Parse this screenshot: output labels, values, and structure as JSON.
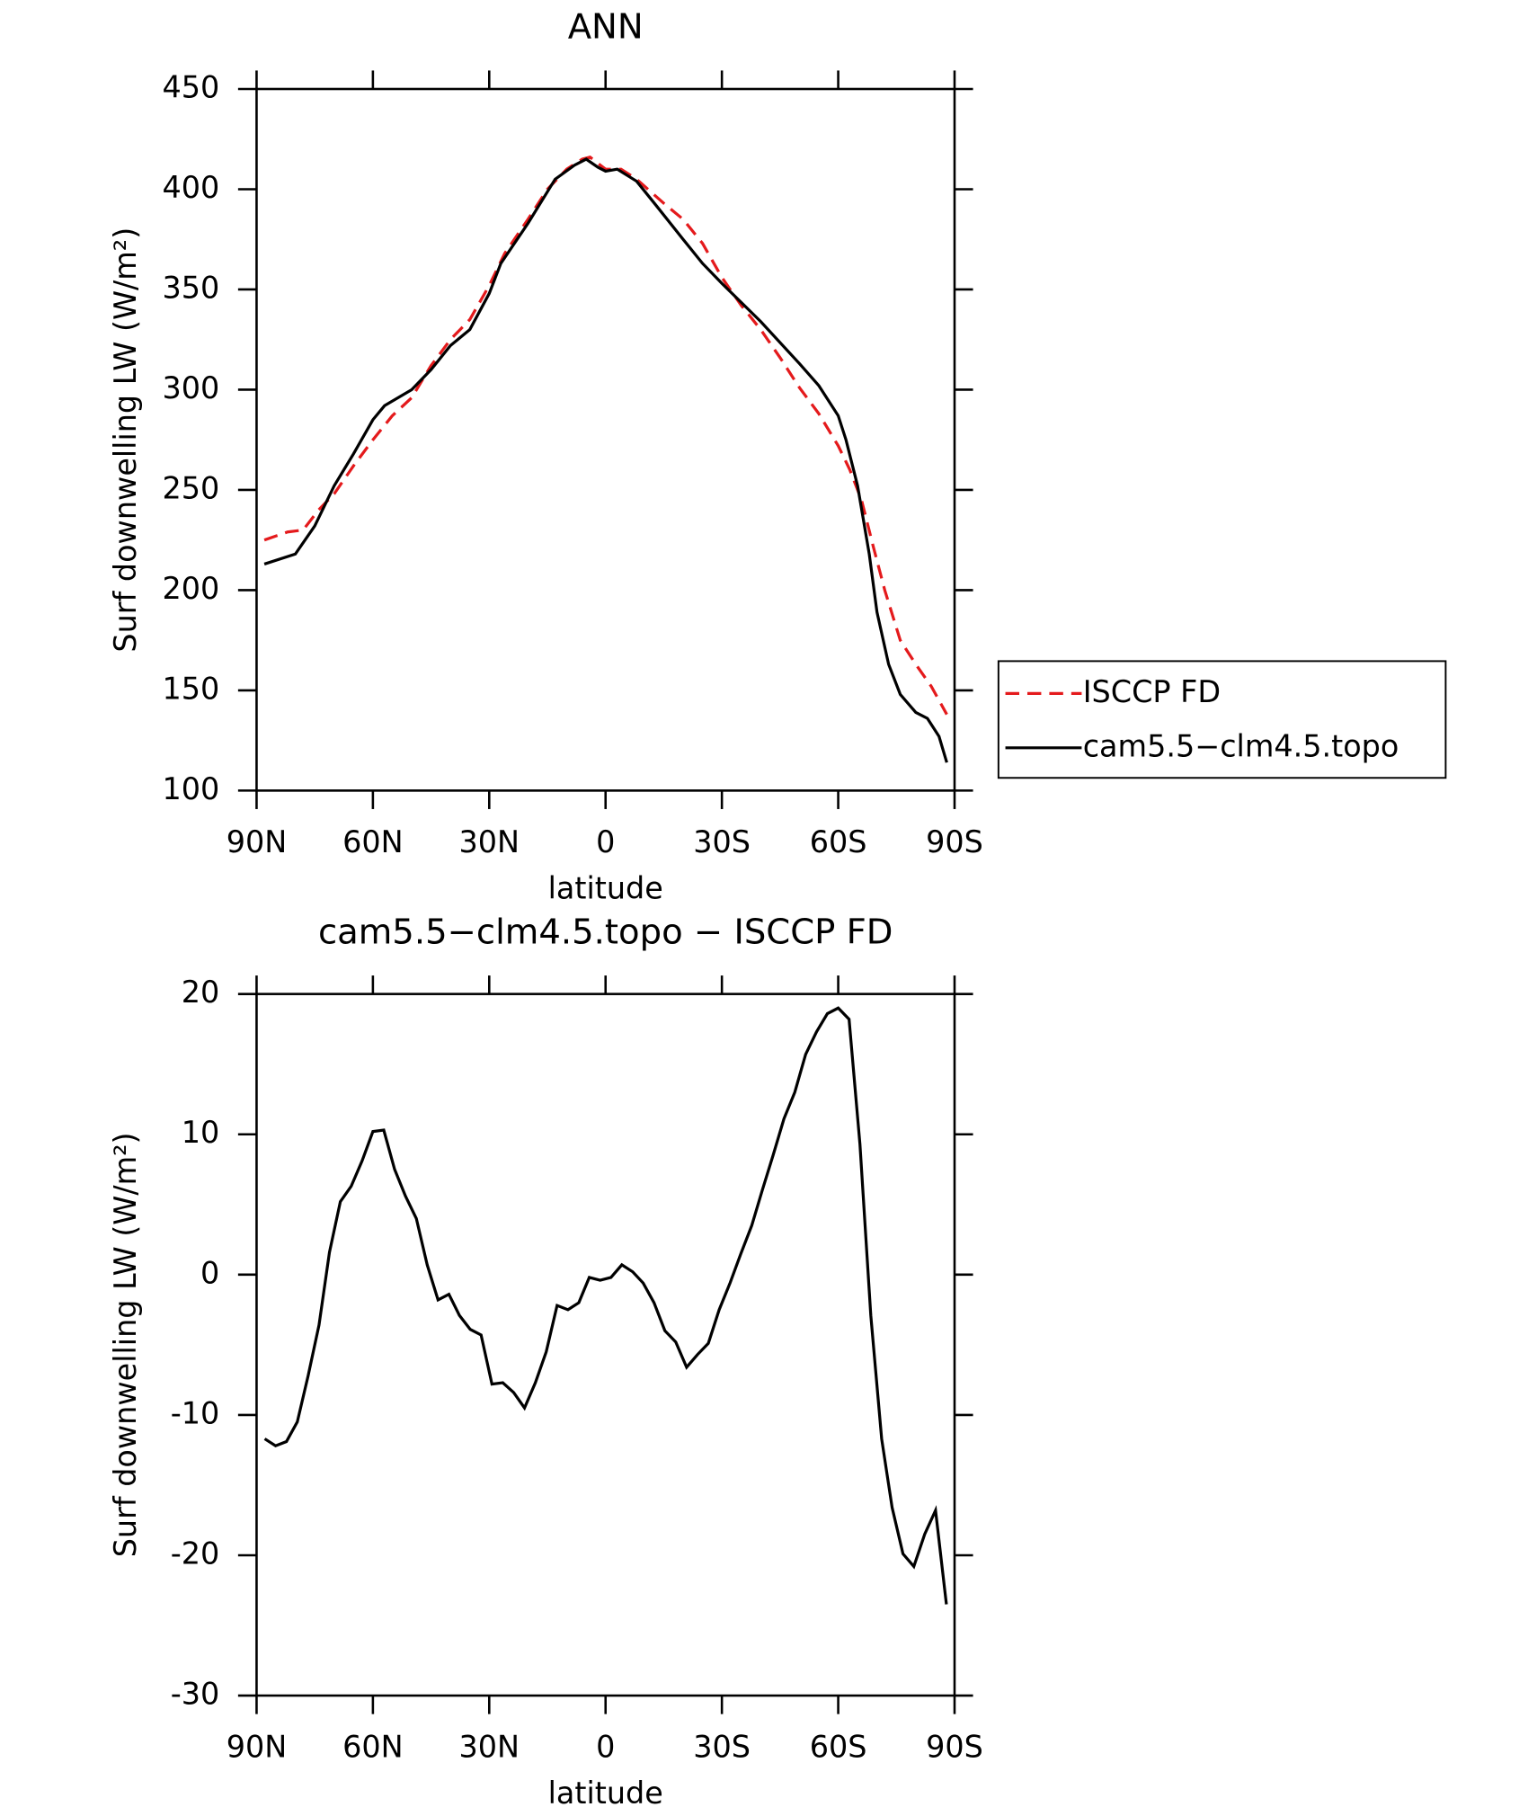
{
  "chart_data": [
    {
      "type": "line",
      "title": "ANN",
      "xlabel": "latitude",
      "ylabel": "Surf downwelling LW (W/m²)",
      "xlim": [
        90,
        -90
      ],
      "xticks": [
        {
          "value": 90,
          "label": "90N"
        },
        {
          "value": 60,
          "label": "60N"
        },
        {
          "value": 30,
          "label": "30N"
        },
        0,
        {
          "value": -30,
          "label": "30S"
        },
        {
          "value": -60,
          "label": "60S"
        },
        {
          "value": -90,
          "label": "90S"
        }
      ],
      "ylim": [
        100,
        450
      ],
      "yticks": [
        100,
        150,
        200,
        250,
        300,
        350,
        400,
        450
      ],
      "legend": "outside right",
      "series": [
        {
          "name": "ISCCP FD",
          "color": "#e41a1c",
          "linestyle": "dashed",
          "x": [
            88,
            82,
            78,
            74,
            70,
            65,
            60,
            55,
            50,
            45,
            40,
            35,
            30,
            26,
            20,
            15,
            10,
            6,
            4,
            0,
            -4,
            -8,
            -15,
            -20,
            -25,
            -30,
            -35,
            -40,
            -45,
            -50,
            -55,
            -60,
            -63,
            -66,
            -69,
            -72,
            -76,
            -80,
            -84,
            -88
          ],
          "values": [
            225,
            229,
            230,
            240,
            248,
            262,
            275,
            287,
            296,
            312,
            325,
            335,
            352,
            368,
            385,
            400,
            410,
            415,
            416,
            410,
            410,
            405,
            393,
            385,
            373,
            356,
            342,
            330,
            316,
            301,
            288,
            272,
            260,
            245,
            222,
            200,
            175,
            163,
            152,
            138
          ]
        },
        {
          "name": "cam5.5−clm4.5.topo",
          "color": "#000000",
          "linestyle": "solid",
          "x": [
            88,
            80,
            75,
            70,
            65,
            60,
            57,
            50,
            45,
            40,
            35,
            30,
            27,
            20,
            13,
            8,
            5,
            2,
            0,
            -3,
            -8,
            -13,
            -20,
            -25,
            -30,
            -40,
            -50,
            -55,
            -60,
            -62,
            -65,
            -68,
            -70,
            -73,
            -76,
            -80,
            -83,
            -86,
            -88
          ],
          "values": [
            213,
            218,
            232,
            252,
            268,
            285,
            292,
            300,
            310,
            322,
            330,
            348,
            363,
            383,
            405,
            412,
            415,
            411,
            409,
            410,
            404,
            392,
            375,
            363,
            353,
            334,
            313,
            302,
            287,
            275,
            252,
            218,
            189,
            163,
            148,
            139,
            136,
            127,
            114
          ]
        }
      ]
    },
    {
      "type": "line",
      "title": "cam5.5−clm4.5.topo − ISCCP FD",
      "xlabel": "latitude",
      "ylabel": "Surf downwelling LW (W/m²)",
      "xlim": [
        90,
        -90
      ],
      "xticks": [
        {
          "value": 90,
          "label": "90N"
        },
        {
          "value": 60,
          "label": "60N"
        },
        {
          "value": 30,
          "label": "30N"
        },
        0,
        {
          "value": -30,
          "label": "30S"
        },
        {
          "value": -60,
          "label": "60S"
        },
        {
          "value": -90,
          "label": "90S"
        }
      ],
      "ylim": [
        -30,
        20
      ],
      "yticks": [
        -30,
        -20,
        -10,
        0,
        10,
        20
      ],
      "x": [
        87.9,
        85.1,
        82.3,
        79.5,
        76.7,
        73.9,
        71.2,
        68.4,
        65.6,
        62.8,
        60.0,
        57.2,
        54.4,
        51.6,
        48.8,
        46.0,
        43.2,
        40.4,
        37.7,
        34.9,
        32.1,
        29.3,
        26.5,
        23.7,
        20.9,
        18.1,
        15.3,
        12.5,
        9.7,
        6.9,
        4.2,
        1.4,
        -1.4,
        -4.2,
        -7.0,
        -9.7,
        -12.5,
        -15.3,
        -18.1,
        -20.9,
        -23.7,
        -26.5,
        -29.3,
        -32.1,
        -34.9,
        -37.7,
        -40.4,
        -43.2,
        -46.0,
        -48.8,
        -51.6,
        -54.4,
        -57.2,
        -60.0,
        -62.8,
        -65.6,
        -68.4,
        -71.2,
        -73.9,
        -76.7,
        -79.5,
        -82.3,
        -85.1,
        -87.9
      ],
      "series": [
        {
          "color": "#000000",
          "linestyle": "solid",
          "values": [
            -11.7,
            -12.2,
            -11.9,
            -10.5,
            -7.2,
            -3.6,
            1.6,
            5.2,
            6.3,
            8.1,
            10.2,
            10.3,
            7.5,
            5.6,
            4.0,
            0.7,
            -1.8,
            -1.4,
            -2.9,
            -3.9,
            -4.3,
            -7.8,
            -7.7,
            -8.4,
            -9.5,
            -7.7,
            -5.5,
            -2.2,
            -2.5,
            -2.0,
            -0.2,
            -0.4,
            -0.2,
            0.7,
            0.2,
            -0.6,
            -2.0,
            -4.0,
            -4.8,
            -6.6,
            -5.7,
            -4.9,
            -2.5,
            -0.6,
            1.5,
            3.5,
            6.0,
            8.5,
            11.1,
            13.0,
            15.7,
            17.3,
            18.6,
            19.0,
            18.2,
            9.3,
            -2.9,
            -11.7,
            -16.6,
            -19.9,
            -20.8,
            -18.5,
            -16.8,
            -23.5
          ]
        }
      ]
    }
  ]
}
